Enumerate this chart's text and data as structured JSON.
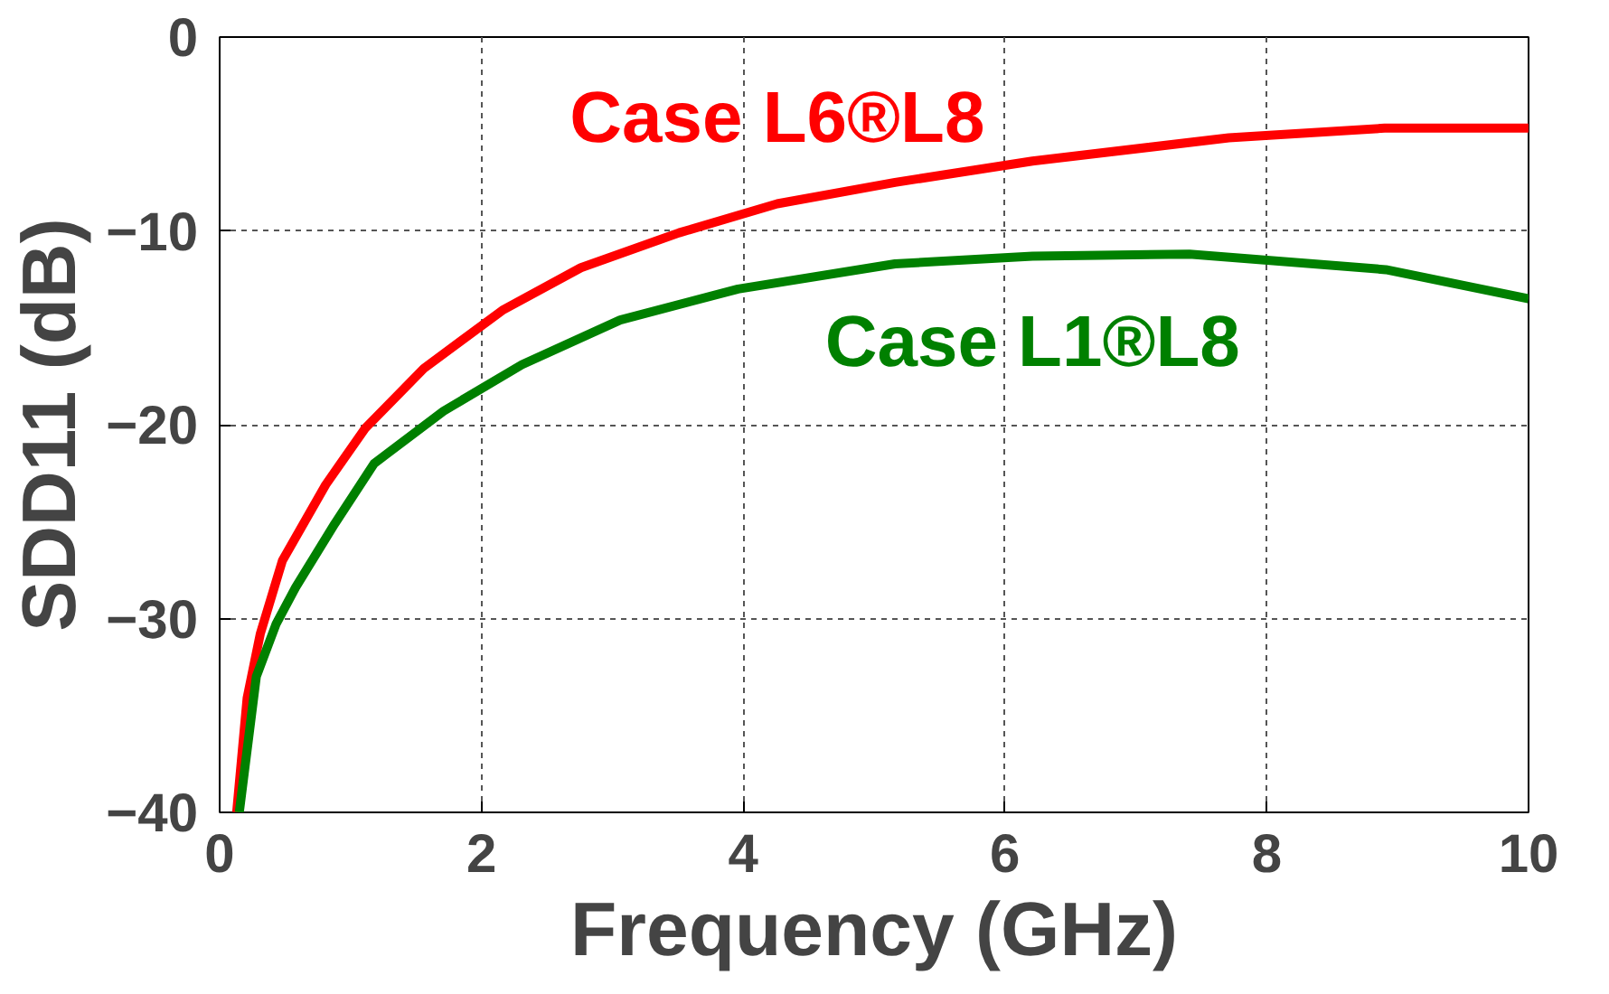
{
  "chart_data": {
    "type": "line",
    "xlabel": "Frequency (GHz)",
    "ylabel": "SDD11 (dB)",
    "xlim": [
      0,
      10
    ],
    "ylim": [
      -40,
      0
    ],
    "xticks": [
      0,
      2,
      4,
      6,
      8,
      10
    ],
    "yticks": [
      -40,
      -30,
      -20,
      -10,
      0
    ],
    "grid": true,
    "legend": false,
    "line_style": "solid",
    "marker": "none",
    "series": [
      {
        "name": "Case L6®L8",
        "color": "#ff0000",
        "x": [
          0.13,
          0.21,
          0.31,
          0.48,
          0.81,
          1.11,
          1.56,
          2.16,
          2.76,
          3.51,
          4.26,
          5.16,
          6.21,
          7.71,
          8.9,
          10
        ],
        "values": [
          -40,
          -34.1,
          -30.8,
          -27,
          -23.1,
          -20.2,
          -17.1,
          -14.1,
          -11.9,
          -10.1,
          -8.6,
          -7.5,
          -6.4,
          -5.2,
          -4.7,
          -4.7
        ]
      },
      {
        "name": "Case L1®L8",
        "color": "#008000",
        "x": [
          0.15,
          0.28,
          0.43,
          0.58,
          0.88,
          1.18,
          1.71,
          2.31,
          3.06,
          3.96,
          5.16,
          6.21,
          7.41,
          8.91,
          10
        ],
        "values": [
          -40,
          -33,
          -30.3,
          -28.4,
          -25.1,
          -22,
          -19.3,
          -16.9,
          -14.6,
          -13,
          -11.7,
          -11.3,
          -11.2,
          -12,
          -13.5
        ]
      }
    ]
  }
}
